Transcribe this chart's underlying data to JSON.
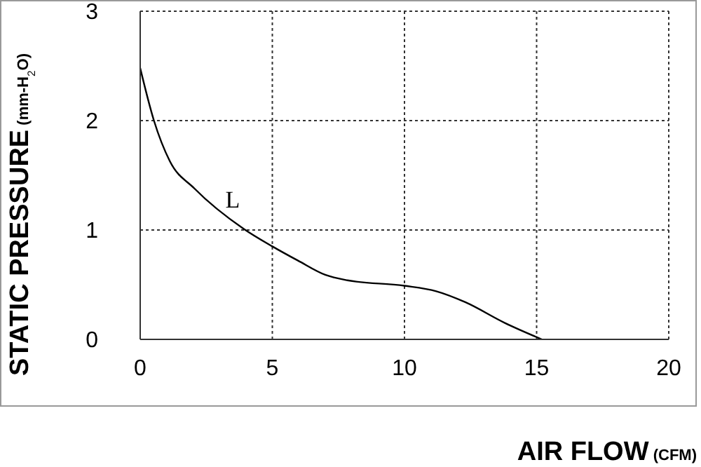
{
  "chart_data": {
    "type": "line",
    "xlabel": "AIR FLOW (CFM)",
    "ylabel": "STATIC PRESSURE (mm-H$_{2}$O)",
    "x": [
      0,
      0.52,
      1.12,
      2.05,
      3.92,
      5,
      5.97,
      7,
      7.84,
      10,
      11.2,
      12.3,
      13.8,
      15.2
    ],
    "series": [
      {
        "color": "#000000",
        "values": [
          2.48,
          2.0,
          1.63,
          1.38,
          1.01,
          0.85,
          0.72,
          0.59,
          0.54,
          0.49,
          0.44,
          0.34,
          0.15,
          0
        ]
      }
    ],
    "xlim": [
      0,
      20
    ],
    "xticks": [
      0,
      5,
      10,
      15,
      20
    ],
    "ylim": [
      0,
      3
    ],
    "yticks": [
      0,
      1,
      2,
      3
    ],
    "grid": true,
    "marker": "none",
    "line_style": "solid",
    "annotations": [
      "L"
    ]
  }
}
